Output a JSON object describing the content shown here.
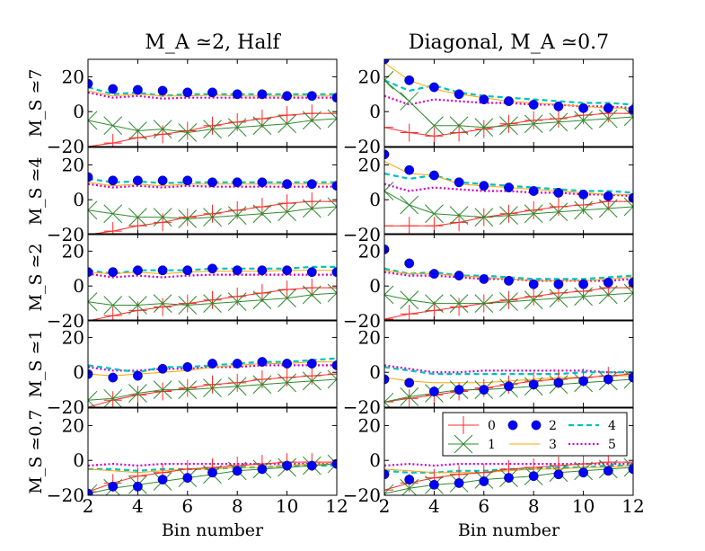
{
  "figure": {
    "col_titles": [
      "M_A ≃2, Half",
      "Diagonal, M_A ≃0.7"
    ],
    "row_labels": [
      "M_S ≃7",
      "M_S ≃4",
      "M_S ≃2",
      "M_S ≃1",
      "M_S ≃0.7"
    ],
    "xlabel": "Bin  number",
    "xticks": [
      2,
      4,
      6,
      8,
      10,
      12
    ],
    "yticks": [
      -20,
      0,
      20
    ],
    "xlim": [
      2,
      12
    ],
    "ylim": [
      -20,
      30
    ]
  },
  "legend": {
    "location": "lower-right panel, upper-right",
    "entries": [
      {
        "key": "0",
        "label": "0"
      },
      {
        "key": "1",
        "label": "1"
      },
      {
        "key": "2",
        "label": "2"
      },
      {
        "key": "3",
        "label": "3"
      },
      {
        "key": "4",
        "label": "4"
      },
      {
        "key": "5",
        "label": "5"
      }
    ]
  },
  "styles": {
    "0": {
      "color": "#ff2a2a",
      "line": "solid",
      "marker": "plus"
    },
    "1": {
      "color": "#2e8b2e",
      "line": "solid",
      "marker": "x"
    },
    "2": {
      "color": "#0000ff",
      "line": "none",
      "marker": "circle"
    },
    "3": {
      "color": "#ffa500",
      "line": "solid",
      "marker": "none"
    },
    "4": {
      "color": "#00c0c0",
      "line": "dashed",
      "marker": "none"
    },
    "5": {
      "color": "#cc00cc",
      "line": "dotted",
      "marker": "none"
    }
  },
  "chart_data": {
    "type": "line",
    "x": [
      2,
      3,
      4,
      5,
      6,
      7,
      8,
      9,
      10,
      11,
      12
    ],
    "panels": [
      {
        "row": 0,
        "col": 0,
        "series": {
          "0": [
            -20,
            -18,
            -15,
            -13,
            -11,
            -8,
            -6,
            -4,
            -2,
            -1,
            -1
          ],
          "1": [
            -5,
            -8,
            -11,
            -10,
            -12,
            -10,
            -9,
            -8,
            -7,
            -5,
            -4
          ],
          "2": [
            16,
            13,
            12.5,
            12,
            11,
            11,
            10,
            10,
            9,
            9,
            8
          ],
          "3": [
            12,
            9,
            10,
            9,
            9,
            9.5,
            9,
            9,
            9,
            9,
            9
          ],
          "4": [
            14,
            10,
            11,
            9,
            10,
            10,
            10,
            10,
            10,
            10,
            10
          ],
          "5": [
            11,
            8,
            9,
            7.5,
            8,
            8,
            8,
            8,
            8,
            8,
            8
          ]
        }
      },
      {
        "row": 0,
        "col": 1,
        "series": {
          "0": [
            -9,
            -12,
            -14,
            -12,
            -10,
            -7,
            -5,
            -4,
            -2,
            -1,
            -1
          ],
          "1": [
            18,
            6,
            -8,
            -8,
            -9,
            -8,
            -7,
            -6,
            -5,
            -4,
            -3
          ],
          "2": [
            30,
            18,
            14,
            10,
            7,
            6,
            4,
            3,
            2,
            2,
            1
          ],
          "3": [
            28,
            18,
            13,
            10,
            8,
            6,
            5,
            4,
            3,
            2,
            2
          ],
          "4": [
            18,
            12,
            15,
            11,
            9,
            8,
            7,
            6,
            5,
            5,
            4
          ],
          "5": [
            9,
            4,
            7,
            6,
            5,
            5,
            4,
            4,
            3,
            3,
            2
          ]
        }
      },
      {
        "row": 1,
        "col": 0,
        "series": {
          "0": [
            -20,
            -18,
            -15,
            -13,
            -10,
            -8,
            -6,
            -4,
            -2,
            -1,
            -1
          ],
          "1": [
            -6,
            -8,
            -10,
            -10,
            -11,
            -10,
            -9,
            -8,
            -7,
            -5,
            -4
          ],
          "2": [
            13,
            11,
            11,
            11,
            11,
            10,
            10,
            10,
            9,
            9,
            8
          ],
          "3": [
            10,
            8,
            9,
            8,
            9,
            9,
            9,
            9,
            9,
            9,
            9
          ],
          "4": [
            12,
            10,
            10.5,
            9.5,
            10,
            10,
            10,
            10,
            10,
            10,
            10
          ],
          "5": [
            9,
            7,
            8,
            7,
            8,
            7.5,
            7.5,
            7.5,
            7.5,
            7.5,
            7.5
          ]
        }
      },
      {
        "row": 1,
        "col": 1,
        "series": {
          "0": [
            -15,
            -15,
            -15,
            -13,
            -10,
            -8,
            -6,
            -4,
            -3,
            -1,
            -1
          ],
          "1": [
            5,
            -3,
            -8,
            -9,
            -10,
            -9,
            -8,
            -7,
            -6,
            -5,
            -4
          ],
          "2": [
            26,
            17,
            14,
            10,
            8,
            7,
            5,
            4,
            3,
            2,
            1
          ],
          "3": [
            22,
            15,
            14,
            9,
            8,
            7,
            6,
            5,
            4,
            3,
            3
          ],
          "4": [
            15,
            12,
            14,
            10,
            9,
            8,
            7,
            6,
            5,
            5,
            4
          ],
          "5": [
            9,
            5,
            7,
            6,
            5,
            5,
            4,
            4,
            3,
            3,
            2
          ]
        }
      },
      {
        "row": 2,
        "col": 0,
        "series": {
          "0": [
            -20,
            -17,
            -14,
            -12,
            -10,
            -8,
            -6,
            -4,
            -2,
            -1,
            -1
          ],
          "1": [
            -9,
            -11,
            -11,
            -10,
            -11,
            -10,
            -9,
            -8,
            -7,
            -5,
            -4
          ],
          "2": [
            8,
            8,
            9,
            9,
            9,
            10,
            9,
            9,
            9,
            8,
            8
          ],
          "3": [
            8,
            7,
            8,
            7,
            8,
            8.5,
            8.5,
            8.5,
            9,
            9,
            9
          ],
          "4": [
            9,
            7,
            9,
            9,
            9,
            10,
            10,
            10,
            10,
            11,
            11
          ],
          "5": [
            7,
            5,
            6,
            5,
            6,
            6.5,
            6.5,
            6.5,
            6.5,
            6.5,
            6.5
          ]
        }
      },
      {
        "row": 2,
        "col": 1,
        "series": {
          "0": [
            -19,
            -16,
            -14,
            -12,
            -10,
            -8,
            -6,
            -4,
            -3,
            -1,
            -1
          ],
          "1": [
            -5,
            -8,
            -10,
            -10,
            -10,
            -9,
            -8,
            -7,
            -6,
            -5,
            -4
          ],
          "2": [
            21,
            13,
            7,
            6,
            4,
            3,
            1,
            1,
            1,
            2,
            2
          ],
          "3": [
            9,
            7,
            7,
            6,
            5,
            4,
            3,
            3,
            3,
            4,
            5
          ],
          "4": [
            10,
            7,
            8,
            6,
            6,
            5,
            4,
            4,
            4,
            5,
            6
          ],
          "5": [
            8,
            6,
            6,
            5,
            4,
            4,
            3,
            3,
            3,
            3,
            4
          ]
        }
      },
      {
        "row": 3,
        "col": 0,
        "series": {
          "0": [
            -20,
            -16,
            -13,
            -11,
            -9,
            -7,
            -6,
            -4,
            -3,
            -2,
            -1
          ],
          "1": [
            -16,
            -15,
            -12,
            -10,
            -10,
            -9,
            -8,
            -7,
            -6,
            -5,
            -4
          ],
          "2": [
            -1,
            -3,
            -2,
            2,
            3,
            5,
            5,
            6,
            5,
            5,
            4
          ],
          "3": [
            -1,
            -2,
            -1,
            0,
            1,
            3,
            4,
            5,
            5,
            6,
            6
          ],
          "4": [
            4,
            2,
            0,
            3,
            3,
            4,
            5,
            6,
            6,
            7,
            8
          ],
          "5": [
            3,
            1,
            1,
            2,
            2,
            3,
            3,
            4,
            4,
            4,
            4
          ]
        }
      },
      {
        "row": 3,
        "col": 1,
        "series": {
          "0": [
            -17,
            -15,
            -13,
            -11,
            -9,
            -7,
            -5,
            -4,
            -3,
            -2,
            -1
          ],
          "1": [
            -17,
            -14,
            -12,
            -10,
            -10,
            -9,
            -8,
            -7,
            -6,
            -5,
            -4
          ],
          "2": [
            -4,
            -6,
            -11,
            -10,
            -10,
            -8,
            -7,
            -6,
            -5,
            -4,
            -3
          ],
          "3": [
            -3,
            -5,
            -6,
            -6,
            -6,
            -5,
            -4,
            -3,
            -3,
            -2,
            -2
          ],
          "4": [
            3,
            1,
            -1,
            -1,
            -1,
            -1,
            -1,
            -1,
            0,
            0,
            0
          ],
          "5": [
            4,
            2,
            0,
            0,
            1,
            1,
            1,
            1,
            1,
            0,
            0
          ]
        }
      },
      {
        "row": 4,
        "col": 0,
        "series": {
          "0": [
            -18,
            -13,
            -9,
            -7,
            -5,
            -4,
            -3,
            -2,
            -1,
            -1,
            -1
          ],
          "1": [
            -19,
            -16,
            -14,
            -12,
            -10,
            -8,
            -6,
            -5,
            -4,
            -3,
            -2
          ],
          "2": [
            -19,
            -15,
            -15,
            -11,
            -10,
            -7,
            -6,
            -5,
            -3,
            -3,
            -2
          ],
          "3": [
            -5,
            -6,
            -7,
            -6,
            -5,
            -5,
            -4,
            -4,
            -3,
            -2,
            -2
          ],
          "4": [
            -5,
            -5,
            -6,
            -5,
            -5,
            -5,
            -4,
            -4,
            -3,
            -3,
            -3
          ],
          "5": [
            -3,
            -2,
            -3,
            -2,
            -2,
            -2,
            -2,
            -2,
            -2,
            -2,
            -2
          ]
        }
      },
      {
        "row": 4,
        "col": 1,
        "series": {
          "0": [
            -17,
            -13,
            -10,
            -8,
            -7,
            -5,
            -4,
            -3,
            -2,
            -1,
            -1
          ],
          "1": [
            -19,
            -16,
            -14,
            -13,
            -11,
            -10,
            -9,
            -7,
            -6,
            -5,
            -4
          ],
          "2": [
            -8,
            -11,
            -14,
            -13,
            -12,
            -10,
            -9,
            -8,
            -7,
            -6,
            -5
          ],
          "3": [
            -5,
            -6,
            -7,
            -7,
            -7,
            -6,
            -5,
            -5,
            -4,
            -4,
            -3
          ],
          "4": [
            -6,
            -7,
            -7,
            -6,
            -6,
            -5,
            -5,
            -4,
            -4,
            -3,
            -3
          ],
          "5": [
            -3,
            -2,
            -3,
            -2,
            -2,
            -2,
            -2,
            -2,
            -2,
            -2,
            -2
          ]
        }
      }
    ]
  }
}
